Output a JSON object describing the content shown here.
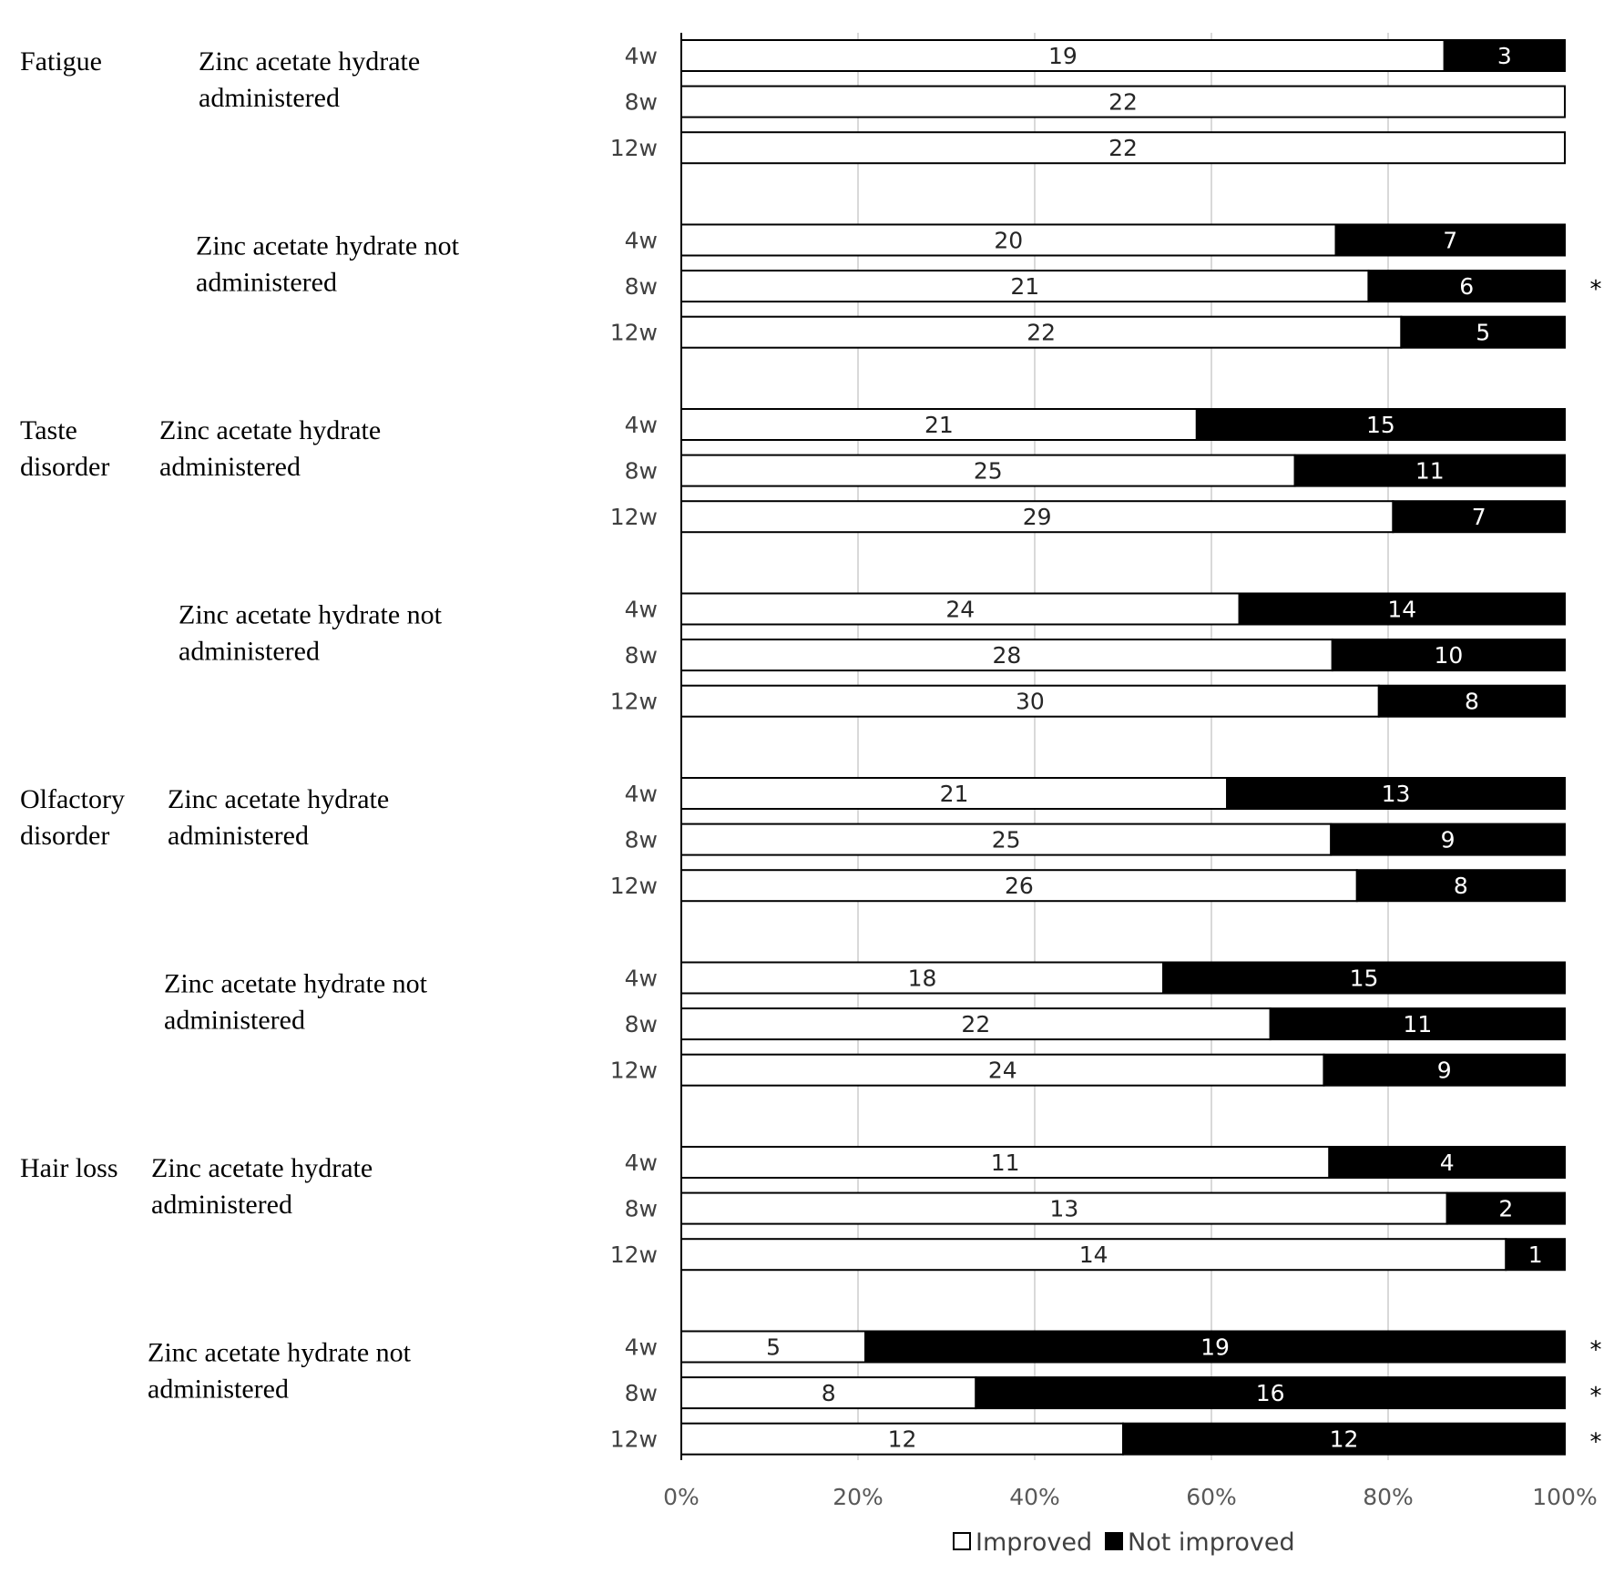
{
  "chart_data": {
    "type": "bar",
    "orientation": "horizontal",
    "stacked": "100%",
    "x_ticks": [
      "0%",
      "20%",
      "40%",
      "60%",
      "80%",
      "100%"
    ],
    "xlim": [
      0,
      100
    ],
    "grid": "vertical",
    "legend": {
      "position": "bottom",
      "entries": [
        {
          "label": "Improved",
          "color": "#ffffff"
        },
        {
          "label": "Not improved",
          "color": "#000000"
        }
      ]
    },
    "series_colors": {
      "improved": "#ffffff",
      "not_improved": "#000000"
    },
    "symptoms": [
      {
        "name": [
          "Fatigue"
        ],
        "groups": [
          {
            "name": [
              "Zinc acetate hydrate",
              "administered"
            ],
            "bars": [
              {
                "time": "4w",
                "improved": 19,
                "not_improved": 3,
                "star": ""
              },
              {
                "time": "8w",
                "improved": 22,
                "not_improved": 0,
                "star": ""
              },
              {
                "time": "12w",
                "improved": 22,
                "not_improved": 0,
                "star": ""
              }
            ]
          },
          {
            "name": [
              "Zinc acetate hydrate not",
              "administered"
            ],
            "bars": [
              {
                "time": "4w",
                "improved": 20,
                "not_improved": 7,
                "star": ""
              },
              {
                "time": "8w",
                "improved": 21,
                "not_improved": 6,
                "star": "*"
              },
              {
                "time": "12w",
                "improved": 22,
                "not_improved": 5,
                "star": ""
              }
            ]
          }
        ]
      },
      {
        "name": [
          "Taste",
          "disorder"
        ],
        "groups": [
          {
            "name": [
              "Zinc acetate hydrate",
              "administered"
            ],
            "bars": [
              {
                "time": "4w",
                "improved": 21,
                "not_improved": 15,
                "star": ""
              },
              {
                "time": "8w",
                "improved": 25,
                "not_improved": 11,
                "star": ""
              },
              {
                "time": "12w",
                "improved": 29,
                "not_improved": 7,
                "star": ""
              }
            ]
          },
          {
            "name": [
              "Zinc acetate hydrate not",
              "administered"
            ],
            "bars": [
              {
                "time": "4w",
                "improved": 24,
                "not_improved": 14,
                "star": ""
              },
              {
                "time": "8w",
                "improved": 28,
                "not_improved": 10,
                "star": ""
              },
              {
                "time": "12w",
                "improved": 30,
                "not_improved": 8,
                "star": ""
              }
            ]
          }
        ]
      },
      {
        "name": [
          "Olfactory",
          "disorder"
        ],
        "groups": [
          {
            "name": [
              "Zinc acetate hydrate",
              "administered"
            ],
            "bars": [
              {
                "time": "4w",
                "improved": 21,
                "not_improved": 13,
                "star": ""
              },
              {
                "time": "8w",
                "improved": 25,
                "not_improved": 9,
                "star": ""
              },
              {
                "time": "12w",
                "improved": 26,
                "not_improved": 8,
                "star": ""
              }
            ]
          },
          {
            "name": [
              "Zinc acetate hydrate not",
              "administered"
            ],
            "bars": [
              {
                "time": "4w",
                "improved": 18,
                "not_improved": 15,
                "star": ""
              },
              {
                "time": "8w",
                "improved": 22,
                "not_improved": 11,
                "star": ""
              },
              {
                "time": "12w",
                "improved": 24,
                "not_improved": 9,
                "star": ""
              }
            ]
          }
        ]
      },
      {
        "name": [
          "Hair loss"
        ],
        "groups": [
          {
            "name": [
              "Zinc acetate hydrate",
              "administered"
            ],
            "bars": [
              {
                "time": "4w",
                "improved": 11,
                "not_improved": 4,
                "star": ""
              },
              {
                "time": "8w",
                "improved": 13,
                "not_improved": 2,
                "star": ""
              },
              {
                "time": "12w",
                "improved": 14,
                "not_improved": 1,
                "star": ""
              }
            ]
          },
          {
            "name": [
              "Zinc acetate hydrate not",
              "administered"
            ],
            "bars": [
              {
                "time": "4w",
                "improved": 5,
                "not_improved": 19,
                "star": "*"
              },
              {
                "time": "8w",
                "improved": 8,
                "not_improved": 16,
                "star": "*"
              },
              {
                "time": "12w",
                "improved": 12,
                "not_improved": 12,
                "star": "*"
              }
            ]
          }
        ]
      }
    ]
  }
}
